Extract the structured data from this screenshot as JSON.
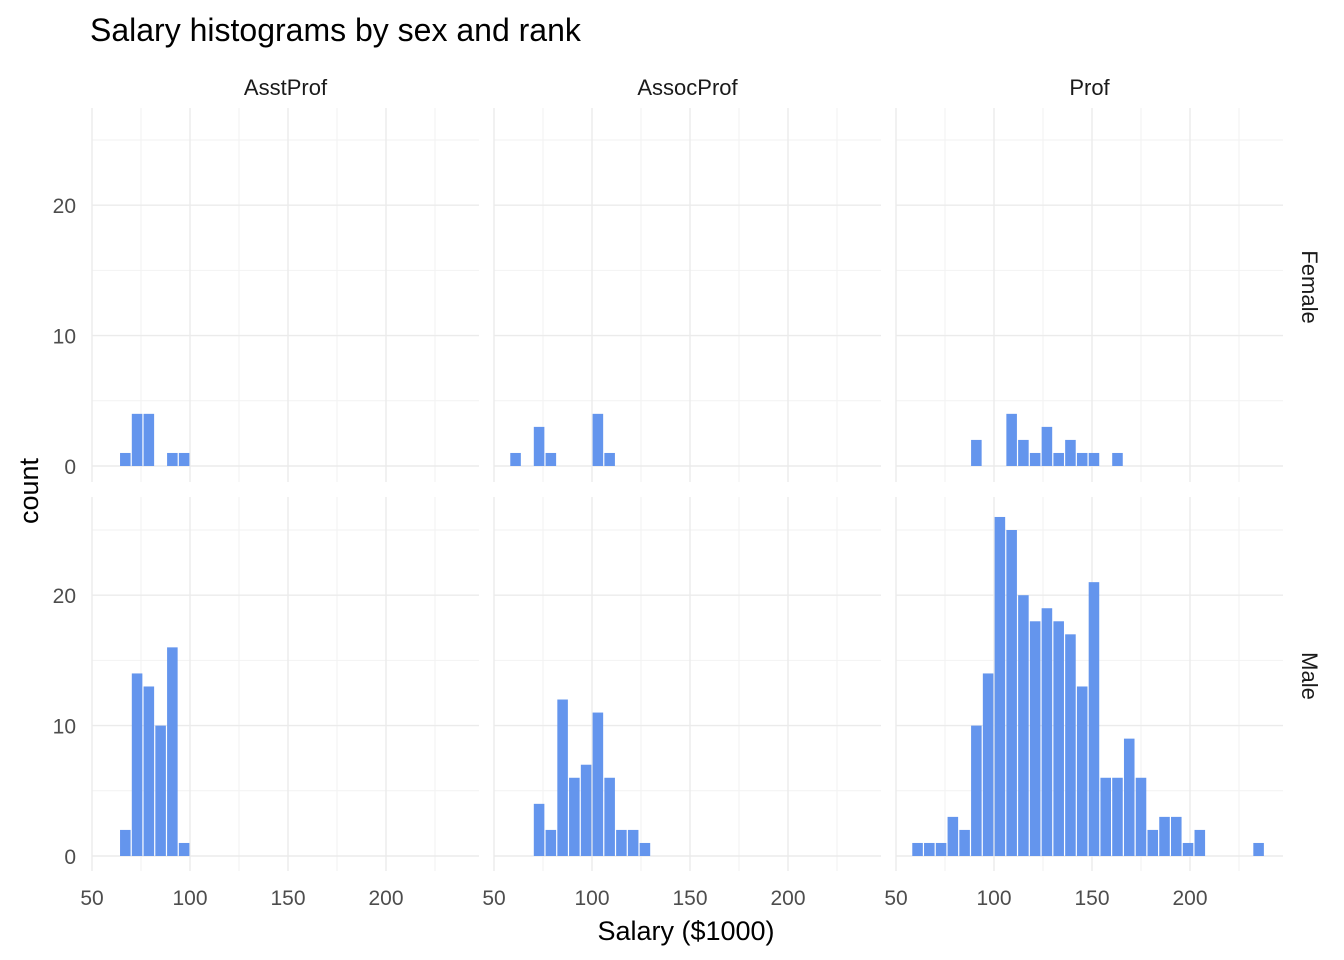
{
  "chart_data": {
    "type": "bar",
    "title": "Salary histograms by sex and rank",
    "xlabel": "Salary ($1000)",
    "ylabel": "count",
    "columns": [
      "AsstProf",
      "AssocProf",
      "Prof"
    ],
    "rows": [
      "Female",
      "Male"
    ],
    "xlim": [
      50,
      245
    ],
    "ylim": [
      0,
      27
    ],
    "x_ticks": [
      50,
      100,
      150,
      200
    ],
    "y_ticks": [
      0,
      10,
      20
    ],
    "bin_width": 6,
    "bar_color": "#6495ED",
    "grid": true,
    "panels": [
      {
        "rank": "AsstProf",
        "sex": "Female",
        "bins": [
          {
            "x": 67,
            "count": 1
          },
          {
            "x": 73,
            "count": 4
          },
          {
            "x": 79,
            "count": 4
          },
          {
            "x": 91,
            "count": 1
          },
          {
            "x": 97,
            "count": 1
          }
        ]
      },
      {
        "rank": "AssocProf",
        "sex": "Female",
        "bins": [
          {
            "x": 61,
            "count": 1
          },
          {
            "x": 73,
            "count": 3
          },
          {
            "x": 79,
            "count": 1
          },
          {
            "x": 103,
            "count": 4
          },
          {
            "x": 109,
            "count": 1
          }
        ]
      },
      {
        "rank": "Prof",
        "sex": "Female",
        "bins": [
          {
            "x": 91,
            "count": 2
          },
          {
            "x": 109,
            "count": 4
          },
          {
            "x": 115,
            "count": 2
          },
          {
            "x": 121,
            "count": 1
          },
          {
            "x": 127,
            "count": 3
          },
          {
            "x": 133,
            "count": 1
          },
          {
            "x": 139,
            "count": 2
          },
          {
            "x": 145,
            "count": 1
          },
          {
            "x": 151,
            "count": 1
          },
          {
            "x": 163,
            "count": 1
          }
        ]
      },
      {
        "rank": "AsstProf",
        "sex": "Male",
        "bins": [
          {
            "x": 67,
            "count": 2
          },
          {
            "x": 73,
            "count": 14
          },
          {
            "x": 79,
            "count": 13
          },
          {
            "x": 85,
            "count": 10
          },
          {
            "x": 91,
            "count": 16
          },
          {
            "x": 97,
            "count": 1
          }
        ]
      },
      {
        "rank": "AssocProf",
        "sex": "Male",
        "bins": [
          {
            "x": 73,
            "count": 4
          },
          {
            "x": 79,
            "count": 2
          },
          {
            "x": 85,
            "count": 12
          },
          {
            "x": 91,
            "count": 6
          },
          {
            "x": 97,
            "count": 7
          },
          {
            "x": 103,
            "count": 11
          },
          {
            "x": 109,
            "count": 6
          },
          {
            "x": 115,
            "count": 2
          },
          {
            "x": 121,
            "count": 2
          },
          {
            "x": 127,
            "count": 1
          }
        ]
      },
      {
        "rank": "Prof",
        "sex": "Male",
        "bins": [
          {
            "x": 61,
            "count": 1
          },
          {
            "x": 67,
            "count": 1
          },
          {
            "x": 73,
            "count": 1
          },
          {
            "x": 79,
            "count": 3
          },
          {
            "x": 85,
            "count": 2
          },
          {
            "x": 91,
            "count": 10
          },
          {
            "x": 97,
            "count": 14
          },
          {
            "x": 103,
            "count": 26
          },
          {
            "x": 109,
            "count": 25
          },
          {
            "x": 115,
            "count": 20
          },
          {
            "x": 121,
            "count": 18
          },
          {
            "x": 127,
            "count": 19
          },
          {
            "x": 133,
            "count": 18
          },
          {
            "x": 139,
            "count": 17
          },
          {
            "x": 145,
            "count": 13
          },
          {
            "x": 151,
            "count": 21
          },
          {
            "x": 157,
            "count": 6
          },
          {
            "x": 163,
            "count": 6
          },
          {
            "x": 169,
            "count": 9
          },
          {
            "x": 175,
            "count": 6
          },
          {
            "x": 181,
            "count": 2
          },
          {
            "x": 187,
            "count": 3
          },
          {
            "x": 193,
            "count": 3
          },
          {
            "x": 199,
            "count": 1
          },
          {
            "x": 205,
            "count": 2
          },
          {
            "x": 235,
            "count": 1
          }
        ]
      }
    ]
  }
}
